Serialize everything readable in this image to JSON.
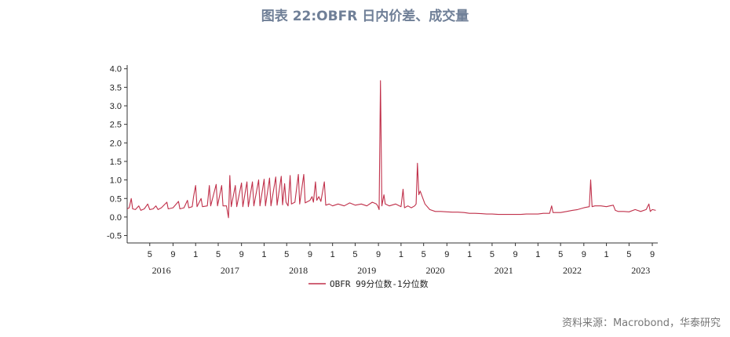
{
  "title": "图表 22:OBFR 日内价差、成交量",
  "source": "资料来源：Macrobond，华泰研究",
  "chart_data": {
    "type": "line",
    "title": "图表 22:OBFR 日内价差、成交量",
    "xlabel": "",
    "ylabel": "",
    "ylim": [
      -0.7,
      4.1
    ],
    "y_ticks": [
      "4.0",
      "3.5",
      "3.0",
      "2.5",
      "2.0",
      "1.5",
      "1.0",
      "0.5",
      "0.0",
      "-0.5"
    ],
    "y_tick_values": [
      4.0,
      3.5,
      3.0,
      2.5,
      2.0,
      1.5,
      1.0,
      0.5,
      0.0,
      -0.5
    ],
    "xlim": [
      2016.0,
      2023.75
    ],
    "month_ticks": [
      {
        "label": "5",
        "x": 2016.33
      },
      {
        "label": "9",
        "x": 2016.67
      },
      {
        "label": "1",
        "x": 2017.0
      },
      {
        "label": "5",
        "x": 2017.33
      },
      {
        "label": "9",
        "x": 2017.67
      },
      {
        "label": "1",
        "x": 2018.0
      },
      {
        "label": "5",
        "x": 2018.33
      },
      {
        "label": "9",
        "x": 2018.67
      },
      {
        "label": "1",
        "x": 2019.0
      },
      {
        "label": "5",
        "x": 2019.33
      },
      {
        "label": "9",
        "x": 2019.67
      },
      {
        "label": "1",
        "x": 2020.0
      },
      {
        "label": "5",
        "x": 2020.33
      },
      {
        "label": "9",
        "x": 2020.67
      },
      {
        "label": "1",
        "x": 2021.0
      },
      {
        "label": "5",
        "x": 2021.33
      },
      {
        "label": "9",
        "x": 2021.67
      },
      {
        "label": "1",
        "x": 2022.0
      },
      {
        "label": "5",
        "x": 2022.33
      },
      {
        "label": "9",
        "x": 2022.67
      },
      {
        "label": "1",
        "x": 2023.0
      },
      {
        "label": "5",
        "x": 2023.33
      },
      {
        "label": "9",
        "x": 2023.67
      }
    ],
    "year_labels": [
      {
        "label": "2016",
        "x": 2016.5
      },
      {
        "label": "2017",
        "x": 2017.5
      },
      {
        "label": "2018",
        "x": 2018.5
      },
      {
        "label": "2019",
        "x": 2019.5
      },
      {
        "label": "2020",
        "x": 2020.5
      },
      {
        "label": "2021",
        "x": 2021.5
      },
      {
        "label": "2022",
        "x": 2022.5
      },
      {
        "label": "2023",
        "x": 2023.5
      }
    ],
    "series": [
      {
        "name": "OBFR 99分位数-1分位数",
        "color": "#c0304a",
        "points": [
          [
            2016.0,
            0.22
          ],
          [
            2016.03,
            0.25
          ],
          [
            2016.06,
            0.5
          ],
          [
            2016.08,
            0.22
          ],
          [
            2016.12,
            0.2
          ],
          [
            2016.17,
            0.3
          ],
          [
            2016.2,
            0.18
          ],
          [
            2016.25,
            0.22
          ],
          [
            2016.3,
            0.35
          ],
          [
            2016.33,
            0.2
          ],
          [
            2016.38,
            0.22
          ],
          [
            2016.42,
            0.3
          ],
          [
            2016.45,
            0.2
          ],
          [
            2016.5,
            0.25
          ],
          [
            2016.58,
            0.4
          ],
          [
            2016.6,
            0.22
          ],
          [
            2016.67,
            0.25
          ],
          [
            2016.75,
            0.42
          ],
          [
            2016.77,
            0.22
          ],
          [
            2016.83,
            0.25
          ],
          [
            2016.88,
            0.45
          ],
          [
            2016.9,
            0.25
          ],
          [
            2016.95,
            0.28
          ],
          [
            2016.97,
            0.55
          ],
          [
            2017.0,
            0.85
          ],
          [
            2017.02,
            0.28
          ],
          [
            2017.08,
            0.5
          ],
          [
            2017.1,
            0.28
          ],
          [
            2017.17,
            0.3
          ],
          [
            2017.2,
            0.85
          ],
          [
            2017.22,
            0.3
          ],
          [
            2017.3,
            0.88
          ],
          [
            2017.32,
            0.3
          ],
          [
            2017.38,
            0.85
          ],
          [
            2017.4,
            0.3
          ],
          [
            2017.45,
            0.3
          ],
          [
            2017.48,
            -0.02
          ],
          [
            2017.5,
            1.12
          ],
          [
            2017.52,
            0.28
          ],
          [
            2017.58,
            0.85
          ],
          [
            2017.6,
            0.28
          ],
          [
            2017.67,
            0.92
          ],
          [
            2017.69,
            0.28
          ],
          [
            2017.75,
            0.95
          ],
          [
            2017.77,
            0.28
          ],
          [
            2017.83,
            0.95
          ],
          [
            2017.85,
            0.3
          ],
          [
            2017.92,
            1.0
          ],
          [
            2017.94,
            0.3
          ],
          [
            2018.0,
            1.02
          ],
          [
            2018.02,
            0.3
          ],
          [
            2018.08,
            1.05
          ],
          [
            2018.1,
            0.3
          ],
          [
            2018.17,
            1.08
          ],
          [
            2018.19,
            0.32
          ],
          [
            2018.25,
            1.1
          ],
          [
            2018.27,
            0.33
          ],
          [
            2018.3,
            0.9
          ],
          [
            2018.32,
            0.4
          ],
          [
            2018.35,
            0.3
          ],
          [
            2018.38,
            1.12
          ],
          [
            2018.4,
            0.35
          ],
          [
            2018.45,
            0.4
          ],
          [
            2018.5,
            1.15
          ],
          [
            2018.52,
            0.35
          ],
          [
            2018.58,
            1.15
          ],
          [
            2018.6,
            0.38
          ],
          [
            2018.67,
            0.45
          ],
          [
            2018.7,
            0.55
          ],
          [
            2018.72,
            0.4
          ],
          [
            2018.75,
            0.95
          ],
          [
            2018.77,
            0.45
          ],
          [
            2018.8,
            0.55
          ],
          [
            2018.83,
            0.42
          ],
          [
            2018.88,
            0.95
          ],
          [
            2018.9,
            0.32
          ],
          [
            2018.95,
            0.35
          ],
          [
            2019.0,
            0.3
          ],
          [
            2019.08,
            0.35
          ],
          [
            2019.17,
            0.3
          ],
          [
            2019.25,
            0.38
          ],
          [
            2019.33,
            0.32
          ],
          [
            2019.42,
            0.35
          ],
          [
            2019.5,
            0.3
          ],
          [
            2019.58,
            0.4
          ],
          [
            2019.64,
            0.35
          ],
          [
            2019.66,
            0.3
          ],
          [
            2019.68,
            0.2
          ],
          [
            2019.7,
            3.68
          ],
          [
            2019.72,
            0.3
          ],
          [
            2019.75,
            0.6
          ],
          [
            2019.77,
            0.35
          ],
          [
            2019.83,
            0.3
          ],
          [
            2019.92,
            0.35
          ],
          [
            2020.0,
            0.28
          ],
          [
            2020.03,
            0.75
          ],
          [
            2020.05,
            0.25
          ],
          [
            2020.1,
            0.3
          ],
          [
            2020.15,
            0.25
          ],
          [
            2020.2,
            0.3
          ],
          [
            2020.22,
            0.35
          ],
          [
            2020.24,
            1.45
          ],
          [
            2020.26,
            0.6
          ],
          [
            2020.28,
            0.7
          ],
          [
            2020.32,
            0.5
          ],
          [
            2020.35,
            0.35
          ],
          [
            2020.42,
            0.2
          ],
          [
            2020.5,
            0.15
          ],
          [
            2020.58,
            0.15
          ],
          [
            2020.67,
            0.14
          ],
          [
            2020.75,
            0.13
          ],
          [
            2020.83,
            0.13
          ],
          [
            2020.92,
            0.12
          ],
          [
            2021.0,
            0.1
          ],
          [
            2021.08,
            0.1
          ],
          [
            2021.17,
            0.09
          ],
          [
            2021.25,
            0.08
          ],
          [
            2021.33,
            0.08
          ],
          [
            2021.42,
            0.07
          ],
          [
            2021.5,
            0.07
          ],
          [
            2021.58,
            0.07
          ],
          [
            2021.67,
            0.07
          ],
          [
            2021.75,
            0.07
          ],
          [
            2021.83,
            0.08
          ],
          [
            2021.92,
            0.08
          ],
          [
            2022.0,
            0.08
          ],
          [
            2022.08,
            0.1
          ],
          [
            2022.17,
            0.1
          ],
          [
            2022.2,
            0.3
          ],
          [
            2022.22,
            0.12
          ],
          [
            2022.33,
            0.12
          ],
          [
            2022.42,
            0.15
          ],
          [
            2022.5,
            0.18
          ],
          [
            2022.58,
            0.2
          ],
          [
            2022.67,
            0.25
          ],
          [
            2022.75,
            0.28
          ],
          [
            2022.77,
            1.0
          ],
          [
            2022.79,
            0.28
          ],
          [
            2022.83,
            0.3
          ],
          [
            2022.92,
            0.3
          ],
          [
            2023.0,
            0.28
          ],
          [
            2023.05,
            0.3
          ],
          [
            2023.1,
            0.32
          ],
          [
            2023.13,
            0.18
          ],
          [
            2023.17,
            0.15
          ],
          [
            2023.25,
            0.15
          ],
          [
            2023.33,
            0.14
          ],
          [
            2023.42,
            0.2
          ],
          [
            2023.5,
            0.15
          ],
          [
            2023.58,
            0.2
          ],
          [
            2023.62,
            0.35
          ],
          [
            2023.64,
            0.15
          ],
          [
            2023.67,
            0.2
          ],
          [
            2023.72,
            0.18
          ]
        ]
      }
    ],
    "grid": false,
    "legend": "bottom-center"
  }
}
